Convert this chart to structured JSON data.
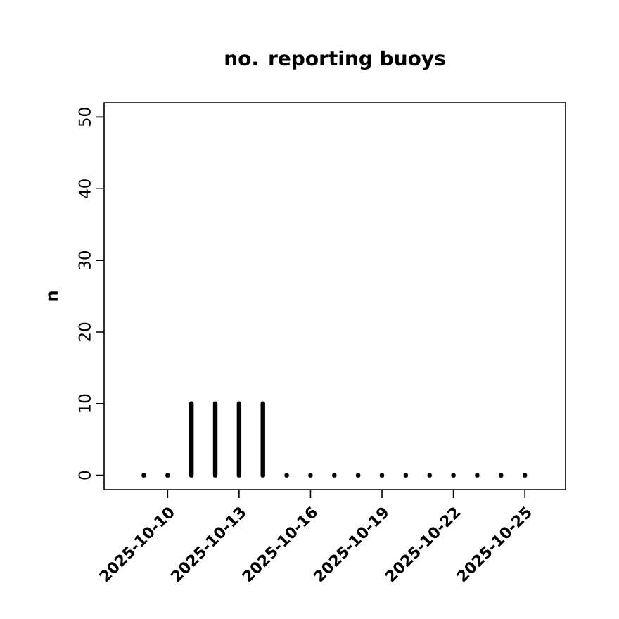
{
  "chart_data": {
    "type": "bar",
    "title": "no. reporting buoys",
    "ylabel": "n",
    "x": [
      "2025-10-09",
      "2025-10-10",
      "2025-10-11",
      "2025-10-12",
      "2025-10-13",
      "2025-10-14",
      "2025-10-15",
      "2025-10-16",
      "2025-10-17",
      "2025-10-18",
      "2025-10-19",
      "2025-10-20",
      "2025-10-21",
      "2025-10-22",
      "2025-10-23",
      "2025-10-24",
      "2025-10-25"
    ],
    "values": [
      0,
      0,
      10,
      10,
      10,
      10,
      0,
      0,
      0,
      0,
      0,
      0,
      0,
      0,
      0,
      0,
      0
    ],
    "color": "#000000",
    "xlim": [
      "2025-10-07T08:00",
      "2025-10-26T17:00"
    ],
    "xticks": [
      "2025-10-10",
      "2025-10-13",
      "2025-10-16",
      "2025-10-19",
      "2025-10-22",
      "2025-10-25"
    ],
    "ylim": [
      -2,
      52
    ],
    "yticks": [
      0,
      10,
      20,
      30,
      40,
      50
    ]
  }
}
